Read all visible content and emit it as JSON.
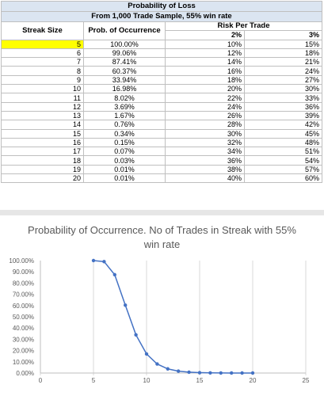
{
  "table": {
    "title1": "Probability of Loss",
    "title2": "From 1,000 Trade Sample,  55% win rate",
    "col_streak": "Streak Size",
    "col_prob": "Prob. of Occurrence",
    "col_risk": "Risk Per Trade",
    "risk_2": "2%",
    "risk_3": "3%",
    "rows": [
      {
        "streak": "5",
        "prob": "100.00%",
        "r2": "10%",
        "r3": "15%"
      },
      {
        "streak": "6",
        "prob": "99.06%",
        "r2": "12%",
        "r3": "18%"
      },
      {
        "streak": "7",
        "prob": "87.41%",
        "r2": "14%",
        "r3": "21%"
      },
      {
        "streak": "8",
        "prob": "60.37%",
        "r2": "16%",
        "r3": "24%"
      },
      {
        "streak": "9",
        "prob": "33.94%",
        "r2": "18%",
        "r3": "27%"
      },
      {
        "streak": "10",
        "prob": "16.98%",
        "r2": "20%",
        "r3": "30%"
      },
      {
        "streak": "11",
        "prob": "8.02%",
        "r2": "22%",
        "r3": "33%"
      },
      {
        "streak": "12",
        "prob": "3.69%",
        "r2": "24%",
        "r3": "36%"
      },
      {
        "streak": "13",
        "prob": "1.67%",
        "r2": "26%",
        "r3": "39%"
      },
      {
        "streak": "14",
        "prob": "0.76%",
        "r2": "28%",
        "r3": "42%"
      },
      {
        "streak": "15",
        "prob": "0.34%",
        "r2": "30%",
        "r3": "45%"
      },
      {
        "streak": "16",
        "prob": "0.15%",
        "r2": "32%",
        "r3": "48%"
      },
      {
        "streak": "17",
        "prob": "0.07%",
        "r2": "34%",
        "r3": "51%"
      },
      {
        "streak": "18",
        "prob": "0.03%",
        "r2": "36%",
        "r3": "54%"
      },
      {
        "streak": "19",
        "prob": "0.01%",
        "r2": "38%",
        "r3": "57%"
      },
      {
        "streak": "20",
        "prob": "0.01%",
        "r2": "40%",
        "r3": "60%"
      }
    ],
    "highlight_color": "#ffff00",
    "title_bg": "#dbe5f1"
  },
  "chart_data": {
    "type": "scatter",
    "title": "Probability of Occurrence. No of Trades in Streak with 55% win rate",
    "xlabel": "",
    "ylabel": "",
    "xlim": [
      0,
      25
    ],
    "ylim": [
      0,
      100
    ],
    "x_ticks": [
      "0",
      "5",
      "10",
      "15",
      "20",
      "25"
    ],
    "y_ticks": [
      "0.00%",
      "10.00%",
      "20.00%",
      "30.00%",
      "40.00%",
      "50.00%",
      "60.00%",
      "70.00%",
      "80.00%",
      "90.00%",
      "100.00%"
    ],
    "grid": "vertical",
    "series_color": "#4472c4",
    "series": [
      {
        "x": [
          5,
          6,
          7,
          8,
          9,
          10,
          11,
          12,
          13,
          14,
          15,
          16,
          17,
          18,
          19,
          20
        ],
        "values": [
          100.0,
          99.06,
          87.41,
          60.37,
          33.94,
          16.98,
          8.02,
          3.69,
          1.67,
          0.76,
          0.34,
          0.15,
          0.07,
          0.03,
          0.01,
          0.01
        ]
      }
    ]
  }
}
